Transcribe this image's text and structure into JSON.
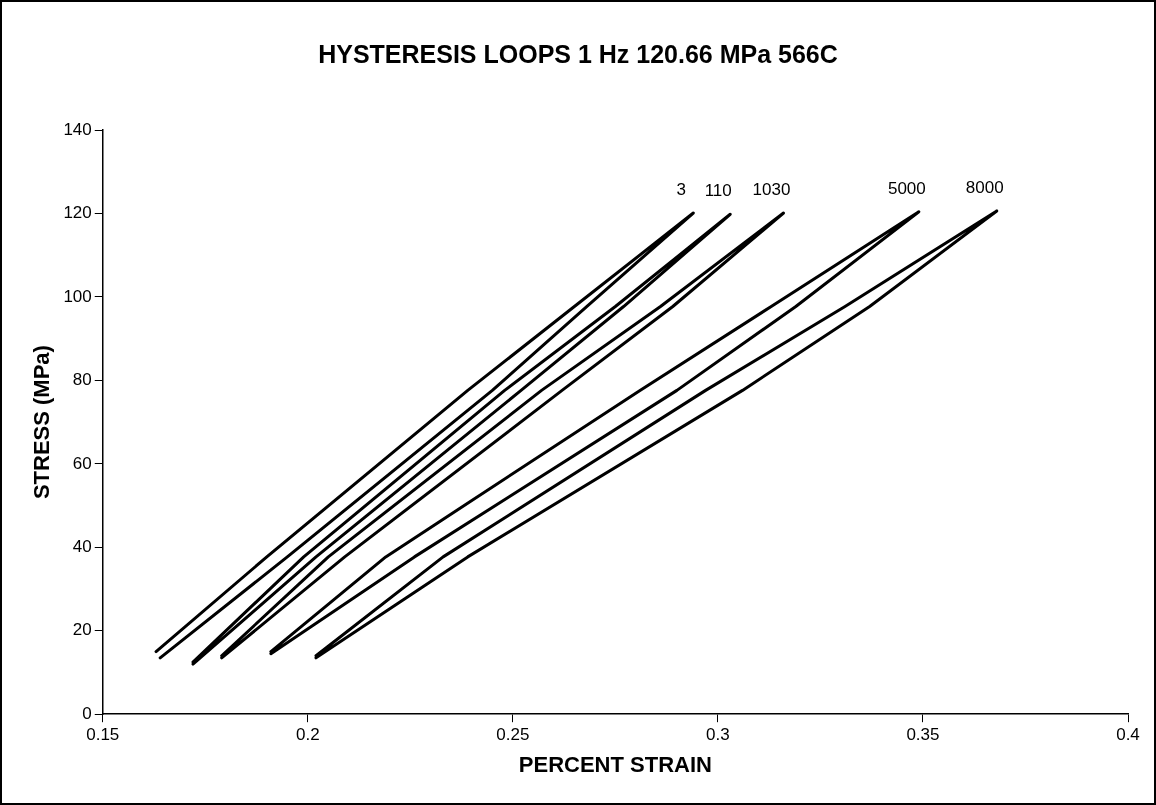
{
  "chart_data": {
    "type": "line",
    "title": "HYSTERESIS LOOPS 1 Hz 120.66 MPa 566C",
    "xlabel": "PERCENT STRAIN",
    "ylabel": "STRESS (MPa)",
    "xlim": [
      0.15,
      0.4
    ],
    "xticks": [
      0.15,
      0.2,
      0.25,
      0.3,
      0.35,
      0.4
    ],
    "ylim": [
      0,
      140
    ],
    "yticks": [
      0,
      20,
      40,
      60,
      80,
      100,
      120,
      140
    ],
    "grid": false,
    "legend": false,
    "marker": "none",
    "line_style": "solid",
    "series": [
      {
        "name": "3",
        "color": "#000000",
        "x": [
          0.163,
          0.19,
          0.239,
          0.265,
          0.294,
          0.268,
          0.245,
          0.195,
          0.164
        ],
        "values": [
          15,
          37.7,
          77.6,
          97.7,
          120.1,
          97.7,
          77.6,
          37.7,
          13.5
        ]
      },
      {
        "name": "110",
        "color": "#000000",
        "x": [
          0.172,
          0.199,
          0.248,
          0.275,
          0.303,
          0.277,
          0.252,
          0.202,
          0.172
        ],
        "values": [
          12.5,
          37.7,
          77.6,
          97.7,
          119.8,
          97.7,
          77.6,
          37.7,
          12
        ]
      },
      {
        "name": "1030",
        "color": "#000000",
        "x": [
          0.179,
          0.205,
          0.257,
          0.286,
          0.316,
          0.289,
          0.262,
          0.209,
          0.179
        ],
        "values": [
          14,
          37.7,
          77.6,
          97.7,
          120.1,
          97.7,
          77.6,
          37.7,
          13.5
        ]
      },
      {
        "name": "5000",
        "color": "#000000",
        "x": [
          0.191,
          0.219,
          0.281,
          0.313,
          0.349,
          0.319,
          0.29,
          0.226,
          0.191
        ],
        "values": [
          15,
          37.7,
          77.6,
          97.7,
          120.4,
          97.7,
          77.6,
          37.7,
          14.5
        ]
      },
      {
        "name": "8000",
        "color": "#000000",
        "x": [
          0.202,
          0.233,
          0.297,
          0.331,
          0.368,
          0.337,
          0.306,
          0.239,
          0.202
        ],
        "values": [
          14,
          37.7,
          77.6,
          97.7,
          120.6,
          97.7,
          77.6,
          37.7,
          13.5
        ]
      }
    ]
  }
}
